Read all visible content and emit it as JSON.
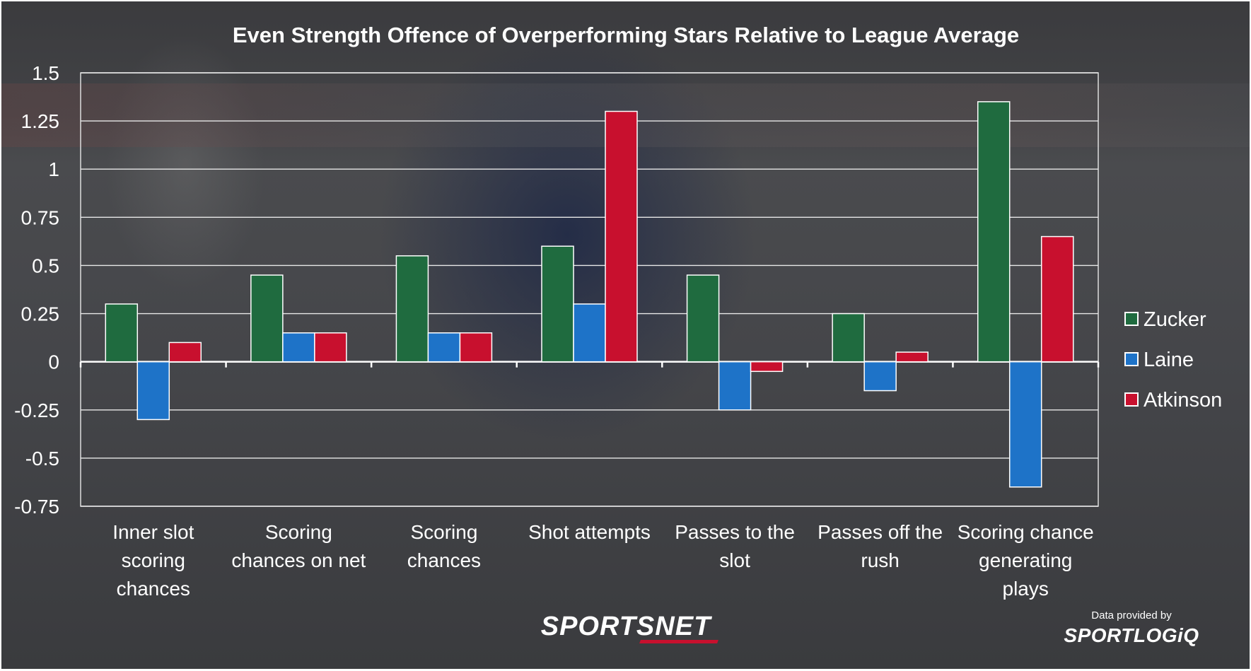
{
  "chart_data": {
    "type": "bar",
    "title": "Even Strength Offence of Overperforming Stars Relative to League Average",
    "categories": [
      "Inner slot scoring chances",
      "Scoring chances on net",
      "Scoring chances",
      "Shot attempts",
      "Passes to the slot",
      "Passes off the rush",
      "Scoring chance generating plays"
    ],
    "category_lines": [
      [
        "Inner slot",
        "scoring",
        "chances"
      ],
      [
        "Scoring",
        "chances on net"
      ],
      [
        "Scoring",
        "chances"
      ],
      [
        "Shot attempts"
      ],
      [
        "Passes to the",
        "slot"
      ],
      [
        "Passes off the",
        "rush"
      ],
      [
        "Scoring chance",
        "generating",
        "plays"
      ]
    ],
    "series": [
      {
        "name": "Zucker",
        "color": "#1f6b3f",
        "values": [
          0.3,
          0.45,
          0.55,
          0.6,
          0.45,
          0.25,
          1.35
        ]
      },
      {
        "name": "Laine",
        "color": "#1e73c8",
        "values": [
          -0.3,
          0.15,
          0.15,
          0.3,
          -0.25,
          -0.15,
          -0.65
        ]
      },
      {
        "name": "Atkinson",
        "color": "#c8102e",
        "values": [
          0.1,
          0.15,
          0.15,
          1.3,
          -0.05,
          0.05,
          0.65
        ]
      }
    ],
    "ylim": [
      -0.75,
      1.5
    ],
    "y_ticks": [
      -0.75,
      -0.5,
      -0.25,
      0,
      0.25,
      0.5,
      0.75,
      1,
      1.25,
      1.5
    ],
    "y_tick_labels": [
      "-0.75",
      "-0.5",
      "-0.25",
      "0",
      "0.25",
      "0.5",
      "0.75",
      "1",
      "1.25",
      "1.5"
    ],
    "grid": true,
    "legend_position": "right"
  },
  "branding": {
    "sportsnet_sports": "SPORTS",
    "sportsnet_net": "NET",
    "credit_caption": "Data provided by",
    "sportlogiq": "SPORTLOGiQ"
  }
}
